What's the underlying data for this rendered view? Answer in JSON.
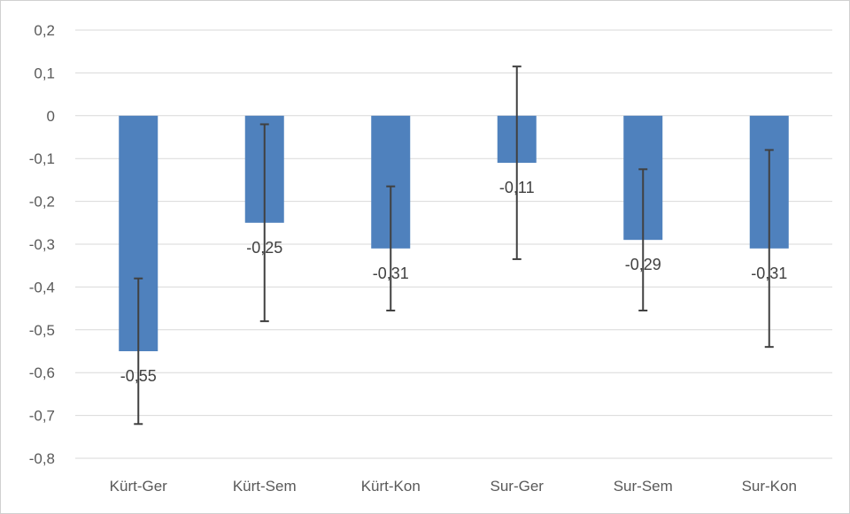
{
  "chart_data": {
    "type": "bar",
    "categories": [
      "Kürt-Ger",
      "Kürt-Sem",
      "Kürt-Kon",
      "Sur-Ger",
      "Sur-Sem",
      "Sur-Kon"
    ],
    "values": [
      -0.55,
      -0.25,
      -0.31,
      -0.11,
      -0.29,
      -0.31
    ],
    "value_labels": [
      "-0,55",
      "-0,25",
      "-0,31",
      "-0,11",
      "-0,29",
      "-0,31"
    ],
    "error_bars": [
      {
        "low": -0.72,
        "high": -0.38
      },
      {
        "low": -0.48,
        "high": -0.02
      },
      {
        "low": -0.455,
        "high": -0.165
      },
      {
        "low": -0.335,
        "high": 0.115
      },
      {
        "low": -0.455,
        "high": -0.125
      },
      {
        "low": -0.54,
        "high": -0.08
      }
    ],
    "y_ticks": [
      0.2,
      0.1,
      0,
      -0.1,
      -0.2,
      -0.3,
      -0.4,
      -0.5,
      -0.6,
      -0.7,
      -0.8
    ],
    "y_tick_labels": [
      "0,2",
      "0,1",
      "0",
      "-0,1",
      "-0,2",
      "-0,3",
      "-0,4",
      "-0,5",
      "-0,6",
      "-0,7",
      "-0,8"
    ],
    "ylim": [
      -0.8,
      0.2
    ],
    "grid": true,
    "bar_color": "#4f81bd",
    "error_bar_color": "#404040",
    "title": "",
    "xlabel": "",
    "ylabel": ""
  }
}
